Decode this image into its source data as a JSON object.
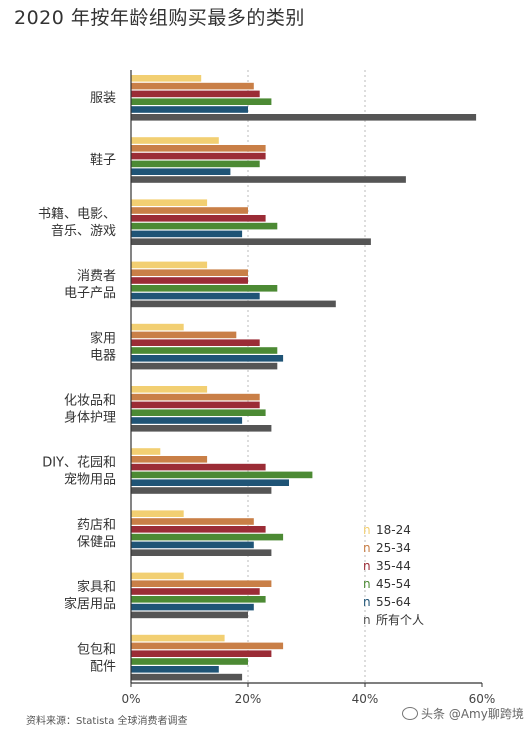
{
  "title": "2020 年按年龄组购买最多的类别",
  "source": "资料来源：Statista 全球消费者调查",
  "watermark": "头条 @Amy聊跨境",
  "colors": {
    "18-24": "#f2cf72",
    "25-34": "#c97f47",
    "35-44": "#9b2c36",
    "45-54": "#4c8a34",
    "55-64": "#1f5476",
    "所有个人": "#555555",
    "axis": "#333333",
    "grid": "#bbbbbb"
  },
  "chart_data": {
    "type": "bar",
    "orientation": "horizontal",
    "categories": [
      "服装",
      "鞋子",
      "书籍、电影、\n音乐、游戏",
      "消费者\n电子产品",
      "家用\n电器",
      "化妆品和\n身体护理",
      "DIY、花园和\n宠物用品",
      "药店和\n保健品",
      "家具和\n家居用品",
      "包包和\n配件"
    ],
    "series": [
      {
        "name": "18-24",
        "values": [
          12,
          15,
          13,
          13,
          9,
          13,
          5,
          9,
          9,
          16
        ]
      },
      {
        "name": "25-34",
        "values": [
          21,
          23,
          20,
          20,
          18,
          22,
          13,
          21,
          24,
          26
        ]
      },
      {
        "name": "35-44",
        "values": [
          22,
          23,
          23,
          20,
          22,
          22,
          23,
          23,
          22,
          24
        ]
      },
      {
        "name": "45-54",
        "values": [
          24,
          22,
          25,
          25,
          25,
          23,
          31,
          26,
          23,
          20
        ]
      },
      {
        "name": "55-64",
        "values": [
          20,
          17,
          19,
          22,
          26,
          19,
          27,
          21,
          21,
          15
        ]
      },
      {
        "name": "所有个人",
        "values": [
          59,
          47,
          41,
          35,
          25,
          24,
          24,
          24,
          20,
          19
        ]
      }
    ],
    "x_ticks": [
      "0%",
      "20%",
      "40%",
      "60%"
    ],
    "xlim": [
      0,
      60
    ],
    "unit": "%",
    "legend_marker": "n",
    "legend_position": "bottom-right",
    "grid": "vertical dashed at 20% and 40%"
  }
}
